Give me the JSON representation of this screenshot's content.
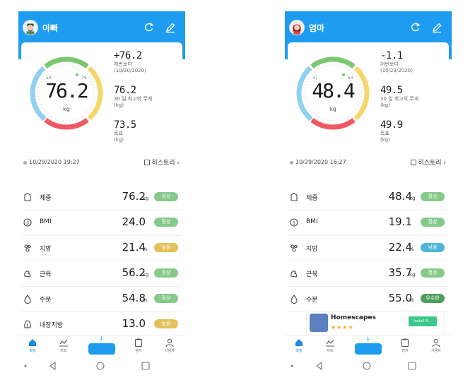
{
  "colors": {
    "header_blue": "#1e9cf0",
    "badge_normal": "#86c98a",
    "badge_high": "#e2c15a",
    "badge_low": "#4db6d8",
    "badge_excellent": "#4f9e5b",
    "gauge_blue": "#8fd0f0",
    "gauge_green": "#7cc66f",
    "gauge_yellow": "#f5d66a",
    "gauge_red": "#ef5a62"
  },
  "profiles": [
    {
      "name": "아빠",
      "avatar_icon": "bearded-man-avatar",
      "weight": "76.2",
      "weight_unit": "kg",
      "gauge_low_tick": "59",
      "gauge_high_tick": "79",
      "change_value": "+76.2",
      "change_label": "저번보다",
      "change_date": "(10/30/2020)",
      "max30_value": "76.2",
      "max30_label": "30 일 최고의 무게",
      "max30_unit": "(kg)",
      "goal_value": "73.5",
      "goal_label": "목표",
      "goal_unit": "(kg)",
      "measured_at": "10/29/2020 19:27",
      "history_label": "히스토리",
      "metrics": [
        {
          "icon": "scale-icon",
          "name": "체중",
          "value": "76.2",
          "unit": "kg",
          "badge": "정상",
          "badge_color": "#86c98a"
        },
        {
          "icon": "bmi-icon",
          "name": "BMI",
          "value": "24.0",
          "unit": "",
          "badge": "정상",
          "badge_color": "#86c98a"
        },
        {
          "icon": "fat-icon",
          "name": "지방",
          "value": "21.4",
          "unit": "%",
          "badge": "높음",
          "badge_color": "#e2c15a"
        },
        {
          "icon": "muscle-icon",
          "name": "근육",
          "value": "56.2",
          "unit": "kg",
          "badge": "정상",
          "badge_color": "#86c98a"
        },
        {
          "icon": "water-icon",
          "name": "수분",
          "value": "54.8",
          "unit": "%",
          "badge": "정상",
          "badge_color": "#86c98a"
        },
        {
          "icon": "visceral-fat-icon",
          "name": "내장지방",
          "value": "13.0",
          "unit": "",
          "badge": "높음",
          "badge_color": "#e2c15a"
        }
      ]
    },
    {
      "name": "엄마",
      "avatar_icon": "woman-avatar",
      "weight": "48.4",
      "weight_unit": "kg",
      "gauge_low_tick": "47",
      "gauge_high_tick": "63",
      "change_value": "-1.1",
      "change_label": "저번보다",
      "change_date": "(10/29/2020)",
      "max30_value": "49.5",
      "max30_label": "30 일 최고의 무게",
      "max30_unit": "(kg)",
      "goal_value": "49.9",
      "goal_label": "목표",
      "goal_unit": "(kg)",
      "measured_at": "10/29/2020 16:27",
      "history_label": "히스토리",
      "metrics": [
        {
          "icon": "scale-icon",
          "name": "체중",
          "value": "48.4",
          "unit": "kg",
          "badge": "정상",
          "badge_color": "#86c98a"
        },
        {
          "icon": "bmi-icon",
          "name": "BMI",
          "value": "19.1",
          "unit": "",
          "badge": "정상",
          "badge_color": "#86c98a"
        },
        {
          "icon": "fat-icon",
          "name": "지방",
          "value": "22.4",
          "unit": "%",
          "badge": "낮음",
          "badge_color": "#4db6d8"
        },
        {
          "icon": "muscle-icon",
          "name": "근육",
          "value": "35.7",
          "unit": "kg",
          "badge": "정상",
          "badge_color": "#86c98a"
        },
        {
          "icon": "water-icon",
          "name": "수분",
          "value": "55.0",
          "unit": "%",
          "badge": "우수한",
          "badge_color": "#4f9e5b"
        }
      ],
      "ad": {
        "title": "Homescapes",
        "stars": "★★★★",
        "install_label": "Install N..."
      }
    }
  ],
  "tabbar": {
    "items": [
      {
        "icon": "home-icon",
        "label": "측정"
      },
      {
        "icon": "chart-icon",
        "label": "차트"
      },
      {
        "icon": "clipboard-icon",
        "label": "정지"
      },
      {
        "icon": "user-icon",
        "label": "사용자"
      }
    ],
    "scale_arrow": "↓"
  }
}
